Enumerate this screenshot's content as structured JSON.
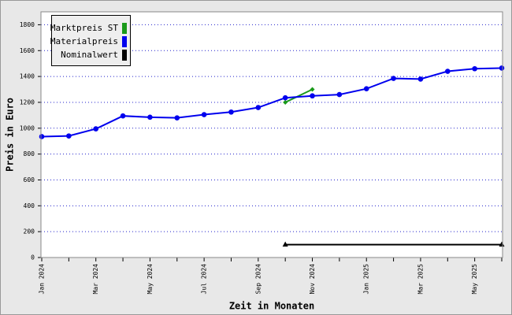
{
  "chart_data": {
    "type": "line",
    "x_label": "Zeit in Monaten",
    "y_label": "Preis in Euro",
    "categories": [
      "Jan 2024",
      null,
      "Mar 2024",
      null,
      "May 2024",
      null,
      "Jul 2024",
      null,
      "Sep 2024",
      null,
      "Nov 2024",
      null,
      "Jan 2025",
      null,
      "Mar 2025",
      null,
      "May 2025",
      null
    ],
    "series": [
      {
        "name": "Marktpreis ST",
        "color": "#1a9a1a",
        "marker": "diamond",
        "values": [
          null,
          null,
          null,
          null,
          null,
          null,
          null,
          null,
          null,
          1200,
          1300,
          null,
          null,
          null,
          null,
          null,
          null,
          null
        ]
      },
      {
        "name": "Materialpreis",
        "color": "#0000ee",
        "marker": "circle",
        "values": [
          935,
          940,
          995,
          1095,
          1085,
          1080,
          1105,
          1125,
          1160,
          1235,
          1250,
          1260,
          1305,
          1385,
          1380,
          1440,
          1460,
          1465
        ]
      },
      {
        "name": "Nominalwert",
        "color": "#000000",
        "marker": "triangle-ends",
        "values": [
          null,
          null,
          null,
          null,
          null,
          null,
          null,
          null,
          null,
          100,
          100,
          100,
          100,
          100,
          100,
          100,
          100,
          100
        ]
      }
    ],
    "ylim": [
      0,
      1900
    ],
    "yticks": [
      0,
      200,
      400,
      600,
      800,
      1000,
      1200,
      1400,
      1600,
      1800
    ],
    "grid": true,
    "legend": "top-left"
  }
}
